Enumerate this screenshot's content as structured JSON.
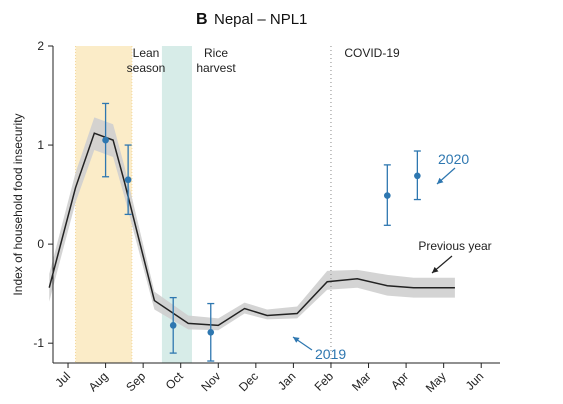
{
  "chart_data": {
    "type": "line",
    "panel": "B",
    "title": "Nepal – NPL1",
    "ylabel": "Index of household food insecurity",
    "ylim": [
      -1.2,
      2
    ],
    "y_ticks": [
      2,
      1,
      0,
      -1
    ],
    "categories": [
      "Jul",
      "Aug",
      "Sep",
      "Oct",
      "Nov",
      "Dec",
      "Jan",
      "Feb",
      "Mar",
      "Apr",
      "May",
      "Jun"
    ],
    "grid": false,
    "series": [
      {
        "name": "Previous year",
        "x": [
          6.5,
          7.2,
          7.7,
          8.2,
          8.5,
          9.3,
          10.2,
          11.0,
          11.7,
          12.3,
          13.1,
          13.9,
          14.7,
          15.5,
          16.2,
          17.3
        ],
        "values": [
          -0.44,
          0.57,
          1.12,
          1.05,
          0.63,
          -0.57,
          -0.8,
          -0.82,
          -0.65,
          -0.72,
          -0.7,
          -0.38,
          -0.35,
          -0.42,
          -0.44,
          -0.44
        ],
        "band": [
          [
            -0.58,
            -0.3
          ],
          [
            0.42,
            0.72
          ],
          [
            0.95,
            1.28
          ],
          [
            0.88,
            1.21
          ],
          [
            0.48,
            0.79
          ],
          [
            -0.66,
            -0.48
          ],
          [
            -0.86,
            -0.72
          ],
          [
            -0.87,
            -0.75
          ],
          [
            -0.7,
            -0.59
          ],
          [
            -0.76,
            -0.66
          ],
          [
            -0.75,
            -0.63
          ],
          [
            -0.46,
            -0.27
          ],
          [
            -0.44,
            -0.26
          ],
          [
            -0.52,
            -0.31
          ],
          [
            -0.54,
            -0.34
          ],
          [
            -0.54,
            -0.34
          ]
        ]
      },
      {
        "name": "2019",
        "x": [
          8.0,
          8.6,
          9.8,
          10.8
        ],
        "values": [
          1.05,
          0.65,
          -0.82,
          -0.89
        ],
        "ci": [
          [
            0.68,
            1.42
          ],
          [
            0.3,
            1.0
          ],
          [
            -1.1,
            -0.54
          ],
          [
            -1.18,
            -0.6
          ]
        ]
      },
      {
        "name": "2020",
        "x": [
          15.5,
          16.3
        ],
        "values": [
          0.49,
          0.69
        ],
        "ci": [
          [
            0.19,
            0.8
          ],
          [
            0.45,
            0.94
          ]
        ]
      }
    ],
    "shaded_periods": [
      {
        "label": "Lean season",
        "x_range": [
          7.2,
          8.7
        ],
        "color": "#fbecc8"
      },
      {
        "label": "Rice harvest",
        "x_range": [
          9.5,
          10.3
        ],
        "color": "#d7ece8"
      }
    ],
    "vertical_line": {
      "label": "COVID-19",
      "x": 14.0
    },
    "annotations": [
      "Lean season",
      "Rice harvest",
      "COVID-19",
      "Previous year",
      "2019",
      "2020"
    ],
    "colors": {
      "line": "#222222",
      "band": "#cfcfcf",
      "points": "#2e77b0"
    }
  },
  "labels": {
    "lean_line1": "Lean",
    "lean_line2": "season",
    "rice_line1": "Rice",
    "rice_line2": "harvest",
    "covid": "COVID-19",
    "previous_year": "Previous year",
    "y2019": "2019",
    "y2020": "2020"
  }
}
